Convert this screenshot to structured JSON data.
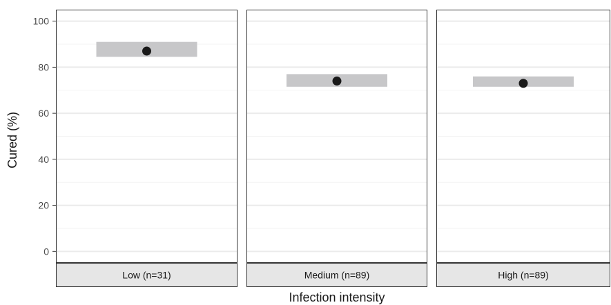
{
  "chart_data": {
    "type": "scatter",
    "title": "",
    "xlabel": "Infection intensity",
    "ylabel": "Cured (%)",
    "ylim": [
      -5,
      105
    ],
    "yticks": [
      0,
      20,
      40,
      60,
      80,
      100
    ],
    "grid": true,
    "legend": "none",
    "panels": [
      {
        "label": "Low (n=31)",
        "value": 87,
        "ci": [
          84.5,
          91
        ]
      },
      {
        "label": "Medium (n=89)",
        "value": 74,
        "ci": [
          71.5,
          77
        ]
      },
      {
        "label": "High (n=89)",
        "value": 73,
        "ci": [
          71.5,
          76
        ]
      }
    ]
  },
  "colors": {
    "point": "#1a1a1a",
    "ci_band": "#c7c7c9",
    "strip_fill": "#e6e6e6",
    "grid_major": "#ebebeb",
    "grid_minor": "#f3f3f3",
    "border": "#333333"
  }
}
